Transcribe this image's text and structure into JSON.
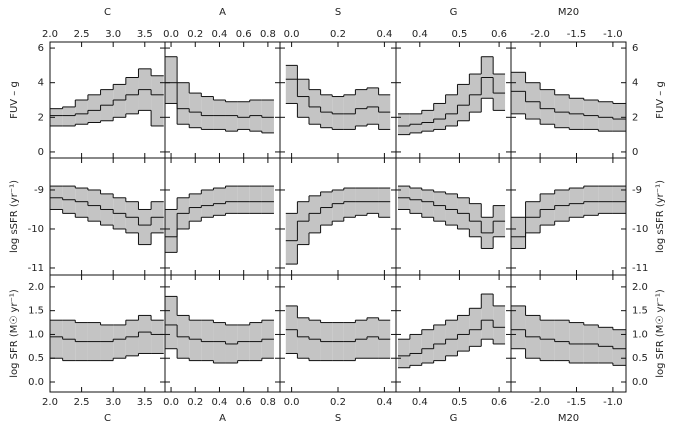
{
  "chart_data": [
    {
      "type": "line",
      "step": true,
      "xlabel": "C",
      "ylabel": "FUV – g",
      "xlim": [
        2.0,
        3.82
      ],
      "ylim": [
        -0.35,
        6.35
      ],
      "xticks": [
        {
          "value": 2.0,
          "label": "2.0"
        },
        2.5,
        {
          "value": 3.0,
          "label": "3.0"
        },
        3.5
      ],
      "yticks": [
        0,
        2,
        4,
        6
      ],
      "x": [
        2.1,
        2.3,
        2.5,
        2.7,
        2.9,
        3.1,
        3.3,
        3.5,
        3.7
      ],
      "series": [
        {
          "color": "#111",
          "values": [
            2.5,
            2.6,
            3.0,
            3.3,
            3.6,
            3.9,
            4.3,
            4.8,
            4.4
          ]
        },
        {
          "color": "#111",
          "values": [
            2.1,
            2.1,
            2.2,
            2.4,
            2.7,
            3.0,
            3.3,
            3.6,
            3.3
          ]
        },
        {
          "color": "#111",
          "values": [
            1.5,
            1.5,
            1.6,
            1.7,
            1.8,
            2.0,
            2.2,
            2.4,
            1.5
          ]
        }
      ]
    },
    {
      "type": "line",
      "step": true,
      "xlabel": "A",
      "xlim": [
        -0.05,
        0.9
      ],
      "ylim": [
        -0.35,
        6.35
      ],
      "xticks": [
        {
          "value": 0,
          "label": "0.0"
        },
        0.2,
        0.4,
        0.6,
        0.8
      ],
      "yticks": [
        0,
        2,
        4,
        6
      ],
      "x": [
        0.0,
        0.1,
        0.2,
        0.3,
        0.4,
        0.5,
        0.6,
        0.7,
        0.8
      ],
      "series": [
        {
          "color": "#111",
          "values": [
            5.5,
            4.0,
            3.4,
            3.2,
            3.0,
            2.9,
            2.9,
            3.0,
            3.0
          ]
        },
        {
          "color": "#111",
          "values": [
            4.0,
            2.5,
            2.3,
            2.1,
            2.1,
            2.1,
            2.0,
            2.1,
            2.0
          ]
        },
        {
          "color": "#111",
          "values": [
            2.8,
            1.6,
            1.4,
            1.3,
            1.3,
            1.2,
            1.3,
            1.2,
            1.1
          ]
        }
      ]
    },
    {
      "type": "line",
      "step": true,
      "xlabel": "S",
      "xlim": [
        -0.05,
        0.45
      ],
      "ylim": [
        -0.35,
        6.35
      ],
      "xticks": [
        {
          "value": 0,
          "label": "0.0"
        },
        0.2,
        0.4
      ],
      "yticks": [
        0,
        2,
        4,
        6
      ],
      "x": [
        0.0,
        0.05,
        0.1,
        0.15,
        0.2,
        0.25,
        0.3,
        0.35,
        0.4
      ],
      "series": [
        {
          "color": "#111",
          "values": [
            5.0,
            4.2,
            3.6,
            3.3,
            3.2,
            3.3,
            3.6,
            3.7,
            3.3
          ]
        },
        {
          "color": "#111",
          "values": [
            4.2,
            3.2,
            2.6,
            2.3,
            2.2,
            2.2,
            2.5,
            2.6,
            2.3
          ]
        },
        {
          "color": "#111",
          "values": [
            2.8,
            2.0,
            1.6,
            1.4,
            1.3,
            1.3,
            1.5,
            1.6,
            1.3
          ]
        }
      ]
    },
    {
      "type": "line",
      "step": true,
      "xlabel": "G",
      "xlim": [
        0.34,
        0.63
      ],
      "ylim": [
        -0.35,
        6.35
      ],
      "xticks": [
        0.4,
        0.5,
        0.6
      ],
      "yticks": [
        0,
        2,
        4,
        6
      ],
      "x": [
        0.36,
        0.39,
        0.42,
        0.45,
        0.48,
        0.51,
        0.54,
        0.57,
        0.6
      ],
      "series": [
        {
          "color": "#111",
          "values": [
            2.2,
            2.2,
            2.4,
            2.8,
            3.3,
            3.9,
            4.5,
            5.5,
            4.5
          ]
        },
        {
          "color": "#111",
          "values": [
            1.5,
            1.6,
            1.7,
            1.9,
            2.2,
            2.7,
            3.3,
            4.3,
            3.4
          ]
        },
        {
          "color": "#111",
          "values": [
            1.0,
            1.1,
            1.2,
            1.3,
            1.5,
            1.8,
            2.3,
            3.1,
            2.4
          ]
        }
      ]
    },
    {
      "type": "line",
      "step": true,
      "xlabel": "M20",
      "ylabel": "FUV – g",
      "xlim": [
        -2.4,
        -0.82
      ],
      "ylim": [
        -0.35,
        6.35
      ],
      "xticks": [
        {
          "value": -2,
          "label": "-2.0"
        },
        -1.5,
        {
          "value": -1,
          "label": "-1.0"
        }
      ],
      "yticks": [
        0,
        2,
        4,
        6
      ],
      "x": [
        -2.3,
        -2.1,
        -1.9,
        -1.7,
        -1.5,
        -1.3,
        -1.1,
        -0.9
      ],
      "series": [
        {
          "color": "#111",
          "values": [
            4.6,
            4.0,
            3.6,
            3.3,
            3.1,
            3.0,
            2.9,
            2.8
          ]
        },
        {
          "color": "#111",
          "values": [
            3.5,
            2.9,
            2.5,
            2.3,
            2.2,
            2.1,
            2.0,
            1.9
          ]
        },
        {
          "color": "#111",
          "values": [
            2.2,
            1.9,
            1.6,
            1.4,
            1.3,
            1.3,
            1.2,
            1.2
          ]
        }
      ]
    },
    {
      "type": "line",
      "step": true,
      "ylabel": "log sSFR (yr⁻¹)",
      "xlim": [
        2.0,
        3.82
      ],
      "ylim": [
        -11.18,
        -8.18
      ],
      "xticks": [
        {
          "value": 2.0,
          "label": "2.0"
        },
        2.5,
        {
          "value": 3.0,
          "label": "3.0"
        },
        3.5
      ],
      "yticks": [
        -11,
        -10,
        -9
      ],
      "x": [
        2.1,
        2.3,
        2.5,
        2.7,
        2.9,
        3.1,
        3.3,
        3.5,
        3.7
      ],
      "series": [
        {
          "color": "#111",
          "values": [
            -8.9,
            -8.9,
            -8.95,
            -9,
            -9.1,
            -9.2,
            -9.3,
            -9.5,
            -9.3
          ]
        },
        {
          "color": "#111",
          "values": [
            -9.2,
            -9.25,
            -9.3,
            -9.4,
            -9.5,
            -9.6,
            -9.7,
            -9.9,
            -9.7
          ]
        },
        {
          "color": "#111",
          "values": [
            -9.5,
            -9.6,
            -9.7,
            -9.8,
            -9.9,
            -10.0,
            -10.1,
            -10.4,
            -10.1
          ]
        }
      ]
    },
    {
      "type": "line",
      "step": true,
      "xlim": [
        -0.05,
        0.9
      ],
      "ylim": [
        -11.18,
        -8.18
      ],
      "xticks": [
        {
          "value": 0,
          "label": "0.0"
        },
        0.2,
        0.4,
        0.6,
        0.8
      ],
      "yticks": [
        -11,
        -10,
        -9
      ],
      "x": [
        0.0,
        0.1,
        0.2,
        0.3,
        0.4,
        0.5,
        0.6,
        0.7,
        0.8
      ],
      "series": [
        {
          "color": "#111",
          "values": [
            -9.5,
            -9.2,
            -9.1,
            -9.0,
            -8.95,
            -8.9,
            -8.9,
            -8.9,
            -8.9
          ]
        },
        {
          "color": "#111",
          "values": [
            -10.2,
            -9.6,
            -9.45,
            -9.4,
            -9.35,
            -9.3,
            -9.3,
            -9.3,
            -9.3
          ]
        },
        {
          "color": "#111",
          "values": [
            -10.6,
            -10.0,
            -9.8,
            -9.7,
            -9.65,
            -9.6,
            -9.6,
            -9.6,
            -9.6
          ]
        }
      ]
    },
    {
      "type": "line",
      "step": true,
      "xlim": [
        -0.05,
        0.45
      ],
      "ylim": [
        -11.18,
        -8.18
      ],
      "xticks": [
        {
          "value": 0,
          "label": "0.0"
        },
        0.2,
        0.4
      ],
      "yticks": [
        -11,
        -10,
        -9
      ],
      "x": [
        0.0,
        0.05,
        0.1,
        0.15,
        0.2,
        0.25,
        0.3,
        0.35,
        0.4
      ],
      "series": [
        {
          "color": "#111",
          "values": [
            -9.6,
            -9.3,
            -9.15,
            -9.05,
            -9.0,
            -8.95,
            -8.95,
            -8.95,
            -8.95
          ]
        },
        {
          "color": "#111",
          "values": [
            -10.3,
            -9.8,
            -9.6,
            -9.45,
            -9.35,
            -9.3,
            -9.3,
            -9.3,
            -9.3
          ]
        },
        {
          "color": "#111",
          "values": [
            -10.9,
            -10.4,
            -10.1,
            -9.9,
            -9.8,
            -9.7,
            -9.65,
            -9.6,
            -9.7
          ]
        }
      ]
    },
    {
      "type": "line",
      "step": true,
      "xlim": [
        0.34,
        0.63
      ],
      "ylim": [
        -11.18,
        -8.18
      ],
      "xticks": [
        0.4,
        0.5,
        0.6
      ],
      "yticks": [
        -11,
        -10,
        -9
      ],
      "x": [
        0.36,
        0.39,
        0.42,
        0.45,
        0.48,
        0.51,
        0.54,
        0.57,
        0.6
      ],
      "series": [
        {
          "color": "#111",
          "values": [
            -8.9,
            -8.95,
            -9.0,
            -9.05,
            -9.1,
            -9.2,
            -9.35,
            -9.7,
            -9.4
          ]
        },
        {
          "color": "#111",
          "values": [
            -9.2,
            -9.25,
            -9.3,
            -9.4,
            -9.5,
            -9.6,
            -9.8,
            -10.1,
            -9.8
          ]
        },
        {
          "color": "#111",
          "values": [
            -9.5,
            -9.6,
            -9.7,
            -9.8,
            -9.9,
            -10.0,
            -10.2,
            -10.5,
            -10.2
          ]
        }
      ]
    },
    {
      "type": "line",
      "step": true,
      "ylabel": "log sSFR (yr⁻¹)",
      "xlim": [
        -2.4,
        -0.82
      ],
      "ylim": [
        -11.18,
        -8.18
      ],
      "xticks": [
        {
          "value": -2,
          "label": "-2.0"
        },
        -1.5,
        {
          "value": -1,
          "label": "-1.0"
        }
      ],
      "yticks": [
        -11,
        -10,
        -9
      ],
      "x": [
        -2.3,
        -2.1,
        -1.9,
        -1.7,
        -1.5,
        -1.3,
        -1.1,
        -0.9
      ],
      "series": [
        {
          "color": "#111",
          "values": [
            -9.7,
            -9.3,
            -9.1,
            -9.0,
            -8.95,
            -8.9,
            -8.9,
            -8.9
          ]
        },
        {
          "color": "#111",
          "values": [
            -10.2,
            -9.7,
            -9.5,
            -9.4,
            -9.35,
            -9.3,
            -9.3,
            -9.3
          ]
        },
        {
          "color": "#111",
          "values": [
            -10.5,
            -10.1,
            -9.9,
            -9.8,
            -9.7,
            -9.65,
            -9.6,
            -9.6
          ]
        }
      ]
    },
    {
      "type": "line",
      "step": true,
      "xlabel": "C",
      "ylabel": "log SFR (M☉ yr⁻¹)",
      "xlim": [
        2.0,
        3.82
      ],
      "ylim": [
        -0.21,
        2.25
      ],
      "xticks": [
        {
          "value": 2.0,
          "label": "2.0"
        },
        2.5,
        {
          "value": 3.0,
          "label": "3.0"
        },
        3.5
      ],
      "yticks": [
        {
          "value": 0,
          "label": "0.0"
        },
        0.5,
        {
          "value": 1,
          "label": "1.0"
        },
        1.5,
        {
          "value": 2,
          "label": "2.0"
        }
      ],
      "x": [
        2.1,
        2.3,
        2.5,
        2.7,
        2.9,
        3.1,
        3.3,
        3.5,
        3.7
      ],
      "series": [
        {
          "color": "#111",
          "values": [
            1.3,
            1.3,
            1.25,
            1.25,
            1.2,
            1.2,
            1.3,
            1.4,
            1.3
          ]
        },
        {
          "color": "#111",
          "values": [
            0.95,
            0.9,
            0.85,
            0.85,
            0.85,
            0.9,
            0.95,
            1.05,
            1.0
          ]
        },
        {
          "color": "#111",
          "values": [
            0.5,
            0.45,
            0.45,
            0.45,
            0.45,
            0.5,
            0.55,
            0.6,
            0.6
          ]
        }
      ]
    },
    {
      "type": "line",
      "step": true,
      "xlabel": "A",
      "xlim": [
        -0.05,
        0.9
      ],
      "ylim": [
        -0.21,
        2.25
      ],
      "xticks": [
        {
          "value": 0,
          "label": "0.0"
        },
        0.2,
        0.4,
        0.6,
        0.8
      ],
      "yticks": [
        {
          "value": 0,
          "label": "0.0"
        },
        0.5,
        {
          "value": 1,
          "label": "1.0"
        },
        1.5,
        {
          "value": 2,
          "label": "2.0"
        }
      ],
      "x": [
        0.0,
        0.1,
        0.2,
        0.3,
        0.4,
        0.5,
        0.6,
        0.7,
        0.8
      ],
      "series": [
        {
          "color": "#111",
          "values": [
            1.8,
            1.4,
            1.3,
            1.3,
            1.25,
            1.2,
            1.2,
            1.25,
            1.3
          ]
        },
        {
          "color": "#111",
          "values": [
            1.2,
            0.95,
            0.9,
            0.85,
            0.85,
            0.8,
            0.85,
            0.85,
            0.9
          ]
        },
        {
          "color": "#111",
          "values": [
            0.7,
            0.5,
            0.45,
            0.45,
            0.4,
            0.4,
            0.45,
            0.45,
            0.5
          ]
        }
      ]
    },
    {
      "type": "line",
      "step": true,
      "xlabel": "S",
      "xlim": [
        -0.05,
        0.45
      ],
      "ylim": [
        -0.21,
        2.25
      ],
      "xticks": [
        {
          "value": 0,
          "label": "0.0"
        },
        0.2,
        0.4
      ],
      "yticks": [
        {
          "value": 0,
          "label": "0.0"
        },
        0.5,
        {
          "value": 1,
          "label": "1.0"
        },
        1.5,
        {
          "value": 2,
          "label": "2.0"
        }
      ],
      "x": [
        0.0,
        0.05,
        0.1,
        0.15,
        0.2,
        0.25,
        0.3,
        0.35,
        0.4
      ],
      "series": [
        {
          "color": "#111",
          "values": [
            1.6,
            1.35,
            1.3,
            1.25,
            1.25,
            1.25,
            1.3,
            1.35,
            1.3
          ]
        },
        {
          "color": "#111",
          "values": [
            1.1,
            0.95,
            0.9,
            0.85,
            0.85,
            0.85,
            0.9,
            0.95,
            0.9
          ]
        },
        {
          "color": "#111",
          "values": [
            0.6,
            0.5,
            0.45,
            0.45,
            0.45,
            0.45,
            0.5,
            0.5,
            0.5
          ]
        }
      ]
    },
    {
      "type": "line",
      "step": true,
      "xlabel": "G",
      "xlim": [
        0.34,
        0.63
      ],
      "ylim": [
        -0.21,
        2.25
      ],
      "xticks": [
        0.4,
        0.5,
        0.6
      ],
      "yticks": [
        {
          "value": 0,
          "label": "0.0"
        },
        0.5,
        {
          "value": 1,
          "label": "1.0"
        },
        1.5,
        {
          "value": 2,
          "label": "2.0"
        }
      ],
      "x": [
        0.36,
        0.39,
        0.42,
        0.45,
        0.48,
        0.51,
        0.54,
        0.57,
        0.6
      ],
      "series": [
        {
          "color": "#111",
          "values": [
            0.9,
            1.0,
            1.1,
            1.2,
            1.3,
            1.4,
            1.55,
            1.85,
            1.6
          ]
        },
        {
          "color": "#111",
          "values": [
            0.55,
            0.6,
            0.7,
            0.8,
            0.9,
            1.0,
            1.1,
            1.3,
            1.15
          ]
        },
        {
          "color": "#111",
          "values": [
            0.3,
            0.35,
            0.4,
            0.45,
            0.55,
            0.65,
            0.75,
            0.9,
            0.8
          ]
        }
      ]
    },
    {
      "type": "line",
      "step": true,
      "xlabel": "M20",
      "ylabel": "log SFR (M☉ yr⁻¹)",
      "xlim": [
        -2.4,
        -0.82
      ],
      "ylim": [
        -0.21,
        2.25
      ],
      "xticks": [
        {
          "value": -2,
          "label": "-2.0"
        },
        -1.5,
        {
          "value": -1,
          "label": "-1.0"
        }
      ],
      "yticks": [
        {
          "value": 0,
          "label": "0.0"
        },
        0.5,
        {
          "value": 1,
          "label": "1.0"
        },
        1.5,
        {
          "value": 2,
          "label": "2.0"
        }
      ],
      "x": [
        -2.3,
        -2.1,
        -1.9,
        -1.7,
        -1.5,
        -1.3,
        -1.1,
        -0.9
      ],
      "series": [
        {
          "color": "#111",
          "values": [
            1.6,
            1.4,
            1.3,
            1.3,
            1.25,
            1.2,
            1.15,
            1.1
          ]
        },
        {
          "color": "#111",
          "values": [
            1.1,
            0.95,
            0.9,
            0.85,
            0.8,
            0.8,
            0.75,
            0.7
          ]
        },
        {
          "color": "#111",
          "values": [
            0.7,
            0.5,
            0.45,
            0.45,
            0.4,
            0.4,
            0.4,
            0.35
          ]
        }
      ]
    }
  ]
}
